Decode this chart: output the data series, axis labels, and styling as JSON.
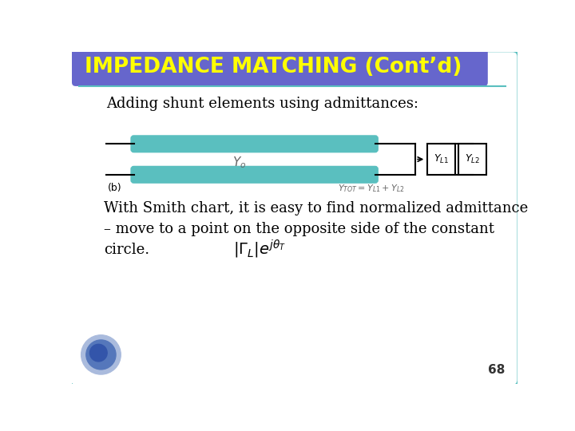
{
  "title": "IMPEDANCE MATCHING (Cont’d)",
  "title_color": "#FFFF00",
  "title_bg_color": "#6666CC",
  "slide_bg_color": "#FFFFFF",
  "border_color": "#5ABFBF",
  "line1_text": "Adding shunt elements using admittances:",
  "line2_text": "With Smith chart, it is easy to find normalized admittance",
  "line3_text": "– move to a point on the opposite side of the constant",
  "line4_text": "circle.",
  "formula_text": "$|\\Gamma_L|e^{j\\theta_T}$",
  "page_number": "68",
  "diagram_label_b": "(b)",
  "diagram_label_Yo": "$Y_o$",
  "diagram_label_YTOT": "$Y_{TOT} = Y_{L1} + Y_{L2}$",
  "diagram_label_YL1": "$Y_{L1}$",
  "diagram_label_YL2": "$Y_{L2}$",
  "tline_color": "#5ABFBF",
  "tline_fill": "#AADDDD"
}
